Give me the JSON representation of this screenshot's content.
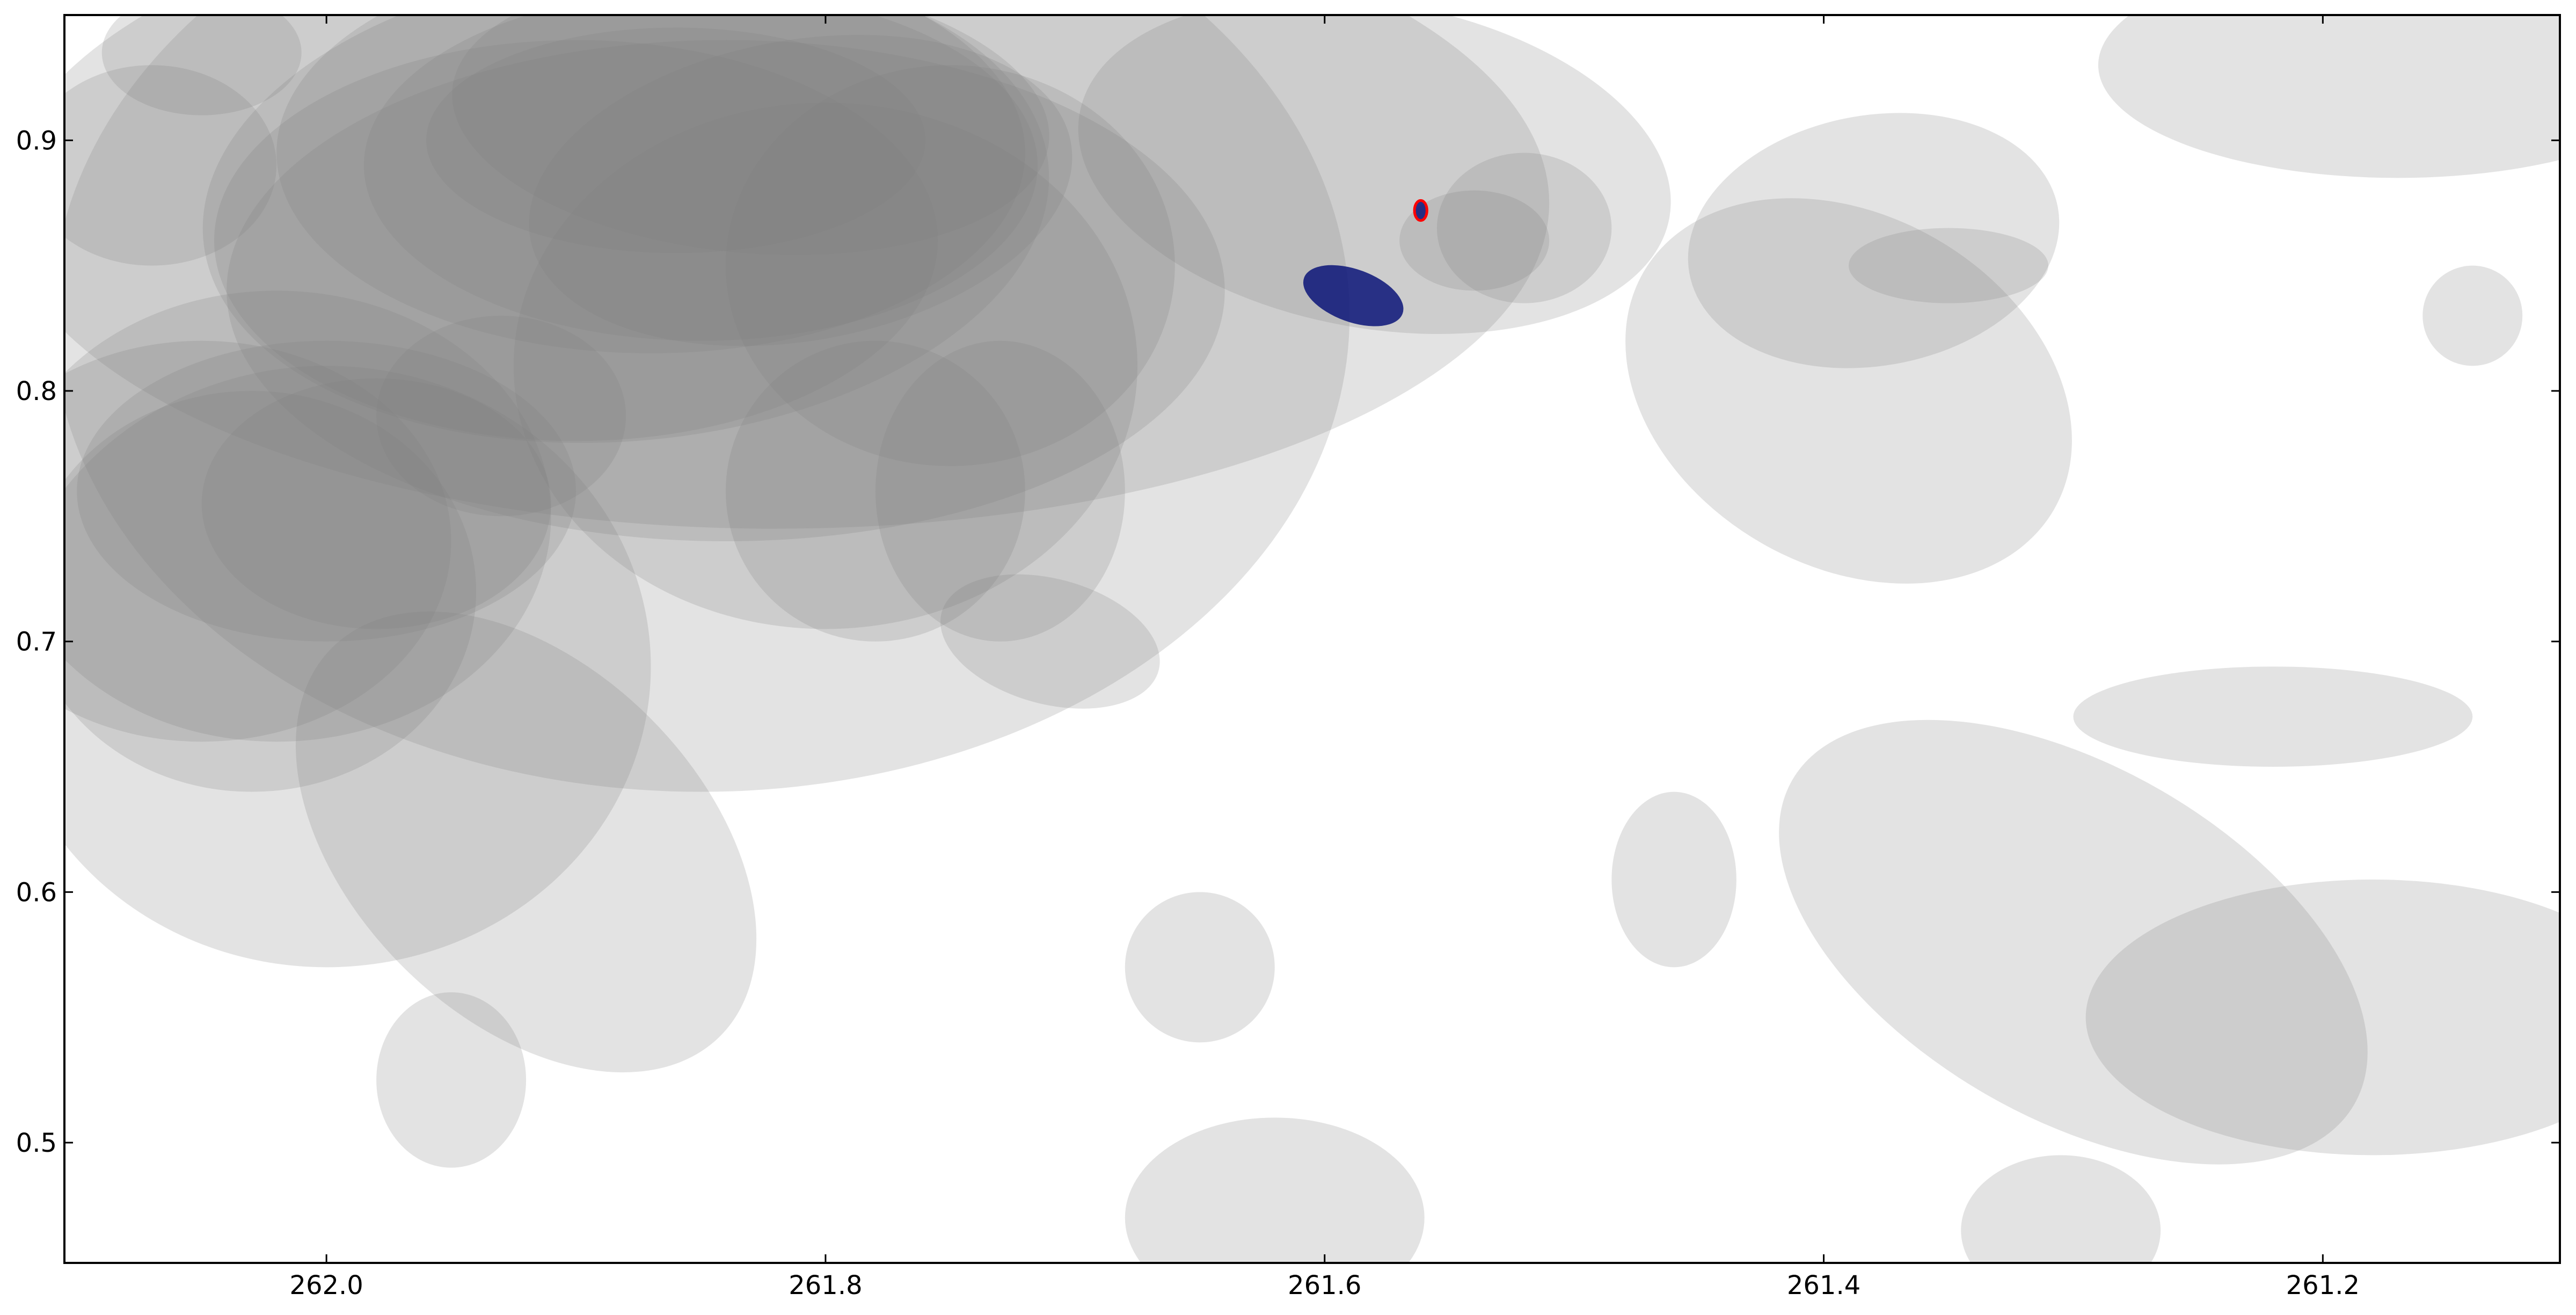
{
  "chart_data": {
    "type": "scatter",
    "title": "",
    "xlabel": "",
    "ylabel": "",
    "xlim": [
      262.105,
      261.105
    ],
    "ylim": [
      0.452,
      0.95
    ],
    "x_inverted": true,
    "grid": false,
    "legend": "none",
    "x_ticks": [
      262.0,
      261.8,
      261.6,
      261.4,
      261.2
    ],
    "x_tick_labels": [
      "262.0",
      "261.8",
      "261.6",
      "261.4",
      "261.2"
    ],
    "y_ticks": [
      0.5,
      0.6,
      0.7,
      0.8,
      0.9
    ],
    "y_tick_labels": [
      "0.5",
      "0.6",
      "0.7",
      "0.8",
      "0.9"
    ],
    "colors": {
      "ellipse_fill": "#808080",
      "highlight_fill": "#0a1478",
      "highlight_outline": "#ff0000",
      "axes": "#000000"
    },
    "series": [
      {
        "name": "",
        "fill_opacity": 0.22,
        "ellipses": [
          {
            "x": 261.87,
            "y": 0.895,
            "w": 0.3,
            "h": 0.16,
            "angle": 0
          },
          {
            "x": 261.85,
            "y": 0.89,
            "w": 0.27,
            "h": 0.14,
            "angle": 0
          },
          {
            "x": 261.88,
            "y": 0.875,
            "w": 0.34,
            "h": 0.19,
            "angle": 5
          },
          {
            "x": 261.83,
            "y": 0.91,
            "w": 0.24,
            "h": 0.11,
            "angle": -5
          },
          {
            "x": 261.9,
            "y": 0.86,
            "w": 0.29,
            "h": 0.16,
            "angle": 0
          },
          {
            "x": 261.86,
            "y": 0.9,
            "w": 0.2,
            "h": 0.09,
            "angle": 0
          },
          {
            "x": 261.81,
            "y": 0.88,
            "w": 0.22,
            "h": 0.12,
            "angle": 10
          },
          {
            "x": 261.84,
            "y": 0.84,
            "w": 0.4,
            "h": 0.2,
            "angle": 0
          },
          {
            "x": 261.8,
            "y": 0.81,
            "w": 0.25,
            "h": 0.21,
            "angle": 0
          },
          {
            "x": 261.75,
            "y": 0.85,
            "w": 0.18,
            "h": 0.16,
            "angle": 0
          },
          {
            "x": 261.78,
            "y": 0.76,
            "w": 0.12,
            "h": 0.12,
            "angle": 0
          },
          {
            "x": 261.73,
            "y": 0.76,
            "w": 0.1,
            "h": 0.12,
            "angle": 0
          },
          {
            "x": 261.82,
            "y": 0.875,
            "w": 0.62,
            "h": 0.26,
            "angle": 0
          },
          {
            "x": 261.85,
            "y": 0.83,
            "w": 0.52,
            "h": 0.38,
            "angle": 0
          },
          {
            "x": 262.02,
            "y": 0.75,
            "w": 0.22,
            "h": 0.18,
            "angle": 0
          },
          {
            "x": 262.05,
            "y": 0.74,
            "w": 0.2,
            "h": 0.16,
            "angle": 0
          },
          {
            "x": 262.0,
            "y": 0.76,
            "w": 0.2,
            "h": 0.12,
            "angle": 0
          },
          {
            "x": 262.03,
            "y": 0.72,
            "w": 0.18,
            "h": 0.16,
            "angle": 0
          },
          {
            "x": 261.98,
            "y": 0.755,
            "w": 0.14,
            "h": 0.1,
            "angle": 0
          },
          {
            "x": 262.0,
            "y": 0.69,
            "w": 0.26,
            "h": 0.24,
            "angle": 0
          },
          {
            "x": 261.93,
            "y": 0.79,
            "w": 0.1,
            "h": 0.08,
            "angle": 0
          },
          {
            "x": 261.92,
            "y": 0.62,
            "w": 0.22,
            "h": 0.14,
            "angle": -45
          },
          {
            "x": 262.07,
            "y": 0.89,
            "w": 0.1,
            "h": 0.08,
            "angle": 0
          },
          {
            "x": 262.05,
            "y": 0.935,
            "w": 0.08,
            "h": 0.05,
            "angle": 0
          },
          {
            "x": 261.58,
            "y": 0.89,
            "w": 0.24,
            "h": 0.13,
            "angle": -10
          },
          {
            "x": 261.52,
            "y": 0.865,
            "w": 0.07,
            "h": 0.06,
            "angle": 0
          },
          {
            "x": 261.39,
            "y": 0.8,
            "w": 0.19,
            "h": 0.14,
            "angle": -30
          },
          {
            "x": 261.38,
            "y": 0.86,
            "w": 0.15,
            "h": 0.1,
            "angle": 10
          },
          {
            "x": 261.17,
            "y": 0.93,
            "w": 0.24,
            "h": 0.09,
            "angle": 0
          },
          {
            "x": 261.22,
            "y": 0.67,
            "w": 0.16,
            "h": 0.04,
            "angle": 0
          },
          {
            "x": 261.3,
            "y": 0.58,
            "w": 0.26,
            "h": 0.14,
            "angle": -30
          },
          {
            "x": 261.18,
            "y": 0.55,
            "w": 0.23,
            "h": 0.11,
            "angle": 0
          },
          {
            "x": 261.62,
            "y": 0.47,
            "w": 0.12,
            "h": 0.08,
            "angle": 0
          },
          {
            "x": 261.95,
            "y": 0.525,
            "w": 0.06,
            "h": 0.07,
            "angle": 0
          },
          {
            "x": 261.65,
            "y": 0.57,
            "w": 0.06,
            "h": 0.06,
            "angle": 0
          },
          {
            "x": 261.71,
            "y": 0.7,
            "w": 0.09,
            "h": 0.05,
            "angle": -15
          },
          {
            "x": 261.54,
            "y": 0.86,
            "w": 0.06,
            "h": 0.04,
            "angle": 0
          },
          {
            "x": 261.35,
            "y": 0.85,
            "w": 0.08,
            "h": 0.03,
            "angle": 0
          },
          {
            "x": 261.14,
            "y": 0.83,
            "w": 0.04,
            "h": 0.04,
            "angle": 0
          },
          {
            "x": 261.305,
            "y": 0.465,
            "w": 0.08,
            "h": 0.06,
            "angle": 0
          },
          {
            "x": 261.46,
            "y": 0.605,
            "w": 0.05,
            "h": 0.07,
            "angle": 0
          }
        ]
      },
      {
        "name": "",
        "fill_opacity": 0.85,
        "ellipses": [
          {
            "x": 261.5885,
            "y": 0.838,
            "w": 0.042,
            "h": 0.021,
            "angle": -20
          }
        ]
      },
      {
        "name": "",
        "fill_opacity": 0.85,
        "ellipses": [
          {
            "x": 261.5615,
            "y": 0.872,
            "w": 0.005,
            "h": 0.008,
            "angle": 0
          }
        ]
      }
    ]
  }
}
